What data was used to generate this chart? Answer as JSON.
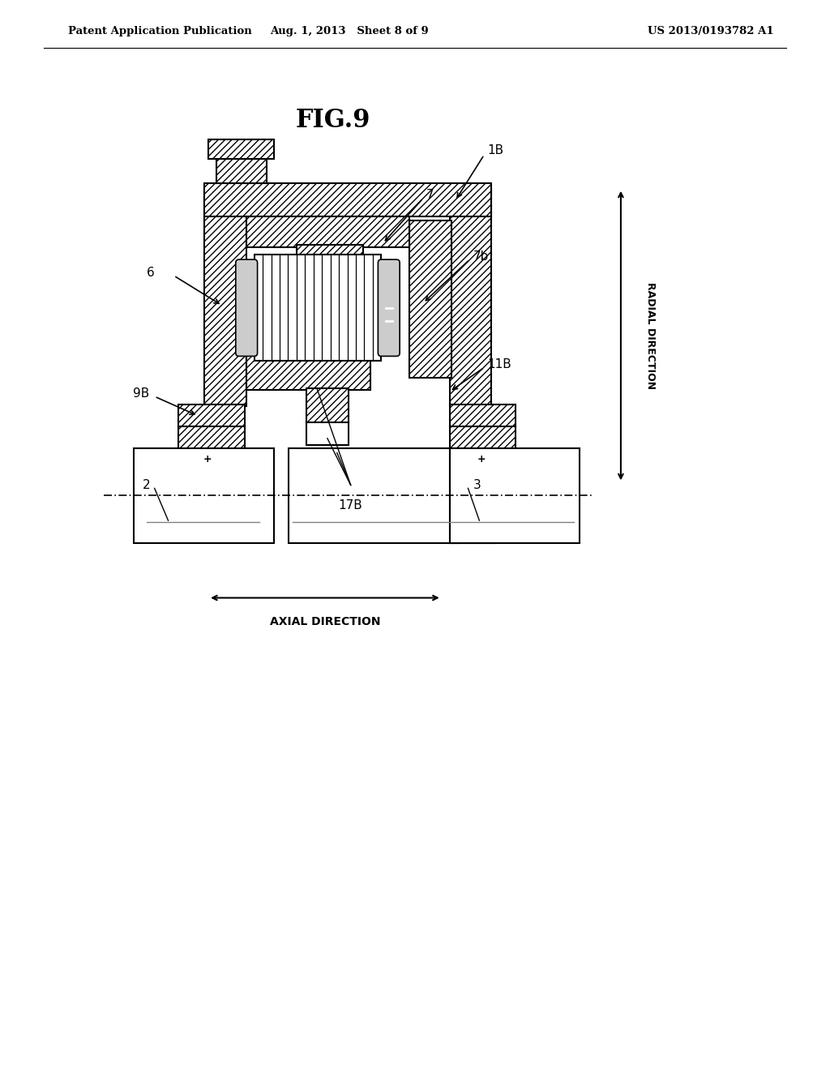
{
  "bg_color": "#ffffff",
  "header_left": "Patent Application Publication",
  "header_mid": "Aug. 1, 2013   Sheet 8 of 9",
  "header_right": "US 2013/0193782 A1",
  "fig_title": "FIG.9"
}
